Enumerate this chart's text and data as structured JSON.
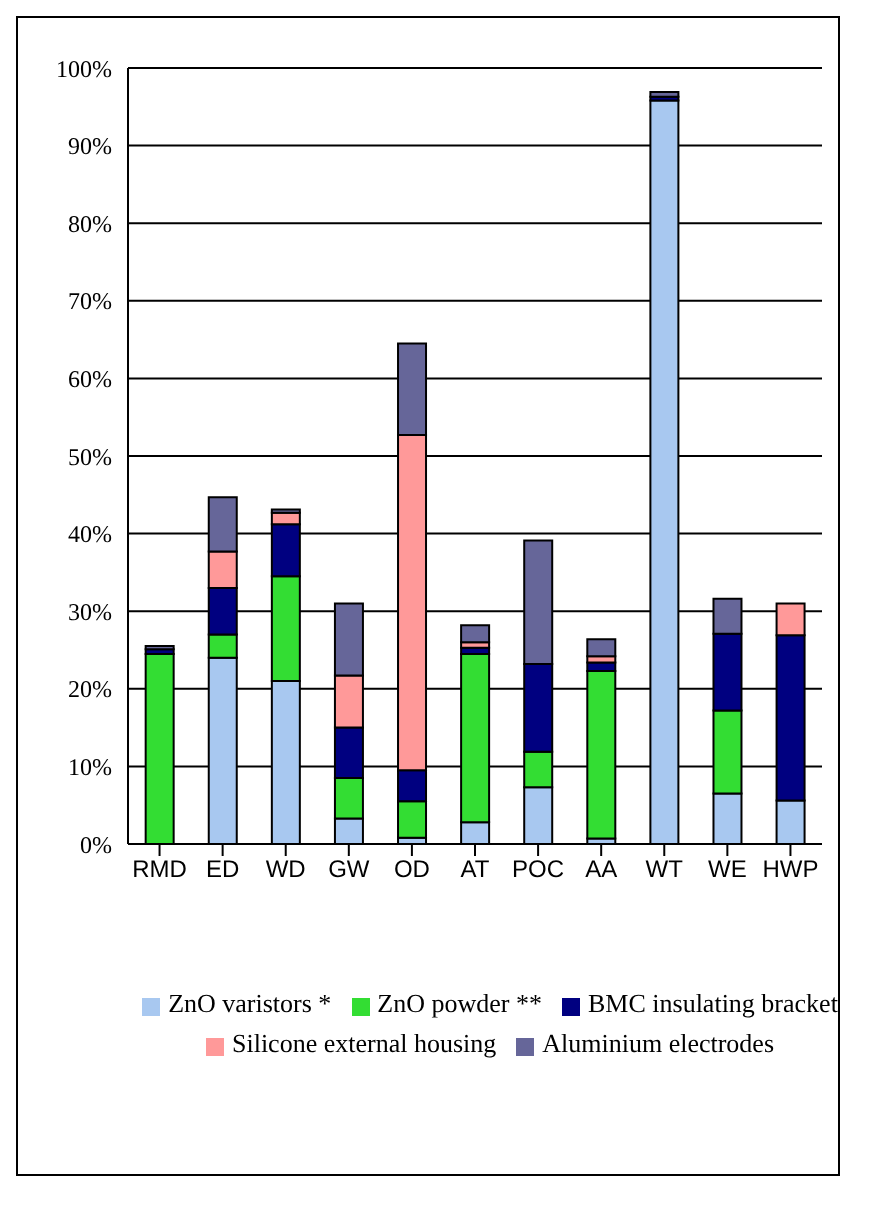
{
  "chart_data": {
    "type": "bar",
    "stacked": true,
    "categories": [
      "RMD",
      "ED",
      "WD",
      "GW",
      "OD",
      "AT",
      "POC",
      "AA",
      "WT",
      "WE",
      "HWP"
    ],
    "series": [
      {
        "name": "ZnO varistors *",
        "color": "#a8c8f0",
        "values": [
          0,
          24,
          21,
          3.3,
          0.8,
          2.8,
          7.3,
          0.7,
          95.8,
          6.5,
          5.6
        ]
      },
      {
        "name": "ZnO powder **",
        "color": "#33dd33",
        "values": [
          24.5,
          3,
          13.5,
          5.2,
          4.7,
          21.7,
          4.6,
          21.6,
          0,
          10.7,
          0
        ]
      },
      {
        "name": "BMC insulating bracket",
        "color": "#000080",
        "values": [
          0.6,
          6,
          6.7,
          6.5,
          4,
          0.8,
          11.3,
          1.1,
          0.5,
          9.9,
          21.3
        ]
      },
      {
        "name": "Silicone external housing",
        "color": "#ff9999",
        "values": [
          null,
          4.7,
          1.5,
          6.7,
          43.2,
          0.7,
          0,
          0.8,
          0,
          0,
          4.1
        ]
      },
      {
        "name": "Aluminium electrodes",
        "color": "#666699",
        "values": [
          0.4,
          7,
          0.4,
          9.3,
          11.8,
          2.2,
          15.9,
          2.2,
          0.6,
          4.5,
          0
        ]
      }
    ],
    "ylim": [
      0,
      100
    ],
    "yticks": [
      {
        "value": 0,
        "label": "0%"
      },
      {
        "value": 10,
        "label": "10%"
      },
      {
        "value": 20,
        "label": "20%"
      },
      {
        "value": 30,
        "label": "30%"
      },
      {
        "value": 40,
        "label": "40%"
      },
      {
        "value": 50,
        "label": "50%"
      },
      {
        "value": 60,
        "label": "60%"
      },
      {
        "value": 70,
        "label": "70%"
      },
      {
        "value": 80,
        "label": "80%"
      },
      {
        "value": 90,
        "label": "90%"
      },
      {
        "value": 100,
        "label": "100%"
      }
    ],
    "grid": "y",
    "legend": "bottom"
  }
}
